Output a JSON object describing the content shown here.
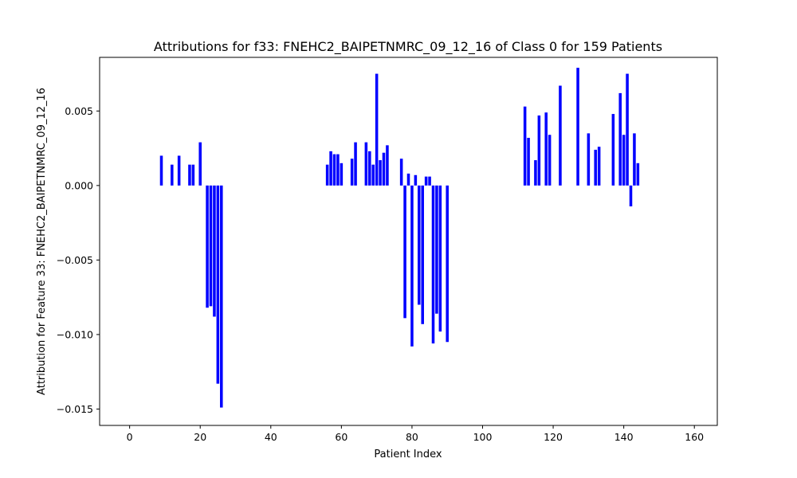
{
  "chart_data": {
    "type": "bar",
    "title": "Attributions for f33: FNEHC2_BAIPETNMRC_09_12_16 of Class 0 for 159 Patients",
    "xlabel": "Patient Index",
    "ylabel": "Attribution for Feature 33: FNEHC2_BAIPETNMRC_09_12_16",
    "xlim": [
      -8.5,
      166.5
    ],
    "ylim": [
      -0.0161,
      0.0086
    ],
    "xticks": [
      0,
      20,
      40,
      60,
      80,
      100,
      120,
      140,
      160
    ],
    "xtick_labels": [
      "0",
      "20",
      "40",
      "60",
      "80",
      "100",
      "120",
      "140",
      "160"
    ],
    "yticks": [
      0.005,
      0.0,
      -0.005,
      -0.01,
      -0.015
    ],
    "ytick_labels": [
      "0.005",
      "0.000",
      "−0.005",
      "−0.010",
      "−0.015"
    ],
    "grid": false,
    "bar_color": "#0000ff",
    "series": [
      {
        "x": [
          9,
          12,
          14,
          17,
          18,
          20,
          22,
          23,
          24,
          25,
          26,
          56,
          57,
          58,
          59,
          60,
          63,
          64,
          67,
          68,
          69,
          70,
          71,
          72,
          73,
          77,
          78,
          79,
          80,
          81,
          82,
          83,
          84,
          85,
          86,
          87,
          88,
          90,
          112,
          113,
          115,
          116,
          118,
          119,
          122,
          127,
          130,
          132,
          133,
          137,
          139,
          140,
          141,
          142,
          143,
          144
        ],
        "values": [
          0.002,
          0.0014,
          0.002,
          0.0014,
          0.0014,
          0.0029,
          -0.0082,
          -0.0081,
          -0.0088,
          -0.0133,
          -0.0149,
          0.0014,
          0.0023,
          0.0021,
          0.0021,
          0.0015,
          0.0018,
          0.0029,
          0.0029,
          0.0023,
          0.0014,
          0.0075,
          0.0017,
          0.0022,
          0.0027,
          0.0018,
          -0.0089,
          0.0008,
          -0.0108,
          0.0007,
          -0.008,
          -0.0093,
          0.0006,
          0.0006,
          -0.0106,
          -0.0086,
          -0.0098,
          -0.0105,
          0.0053,
          0.0032,
          0.0017,
          0.0047,
          0.0049,
          0.0034,
          0.0067,
          0.0079,
          0.0035,
          0.0024,
          0.0026,
          0.0048,
          0.0062,
          0.0034,
          0.0075,
          -0.0014,
          0.0035,
          0.0015
        ]
      }
    ]
  }
}
